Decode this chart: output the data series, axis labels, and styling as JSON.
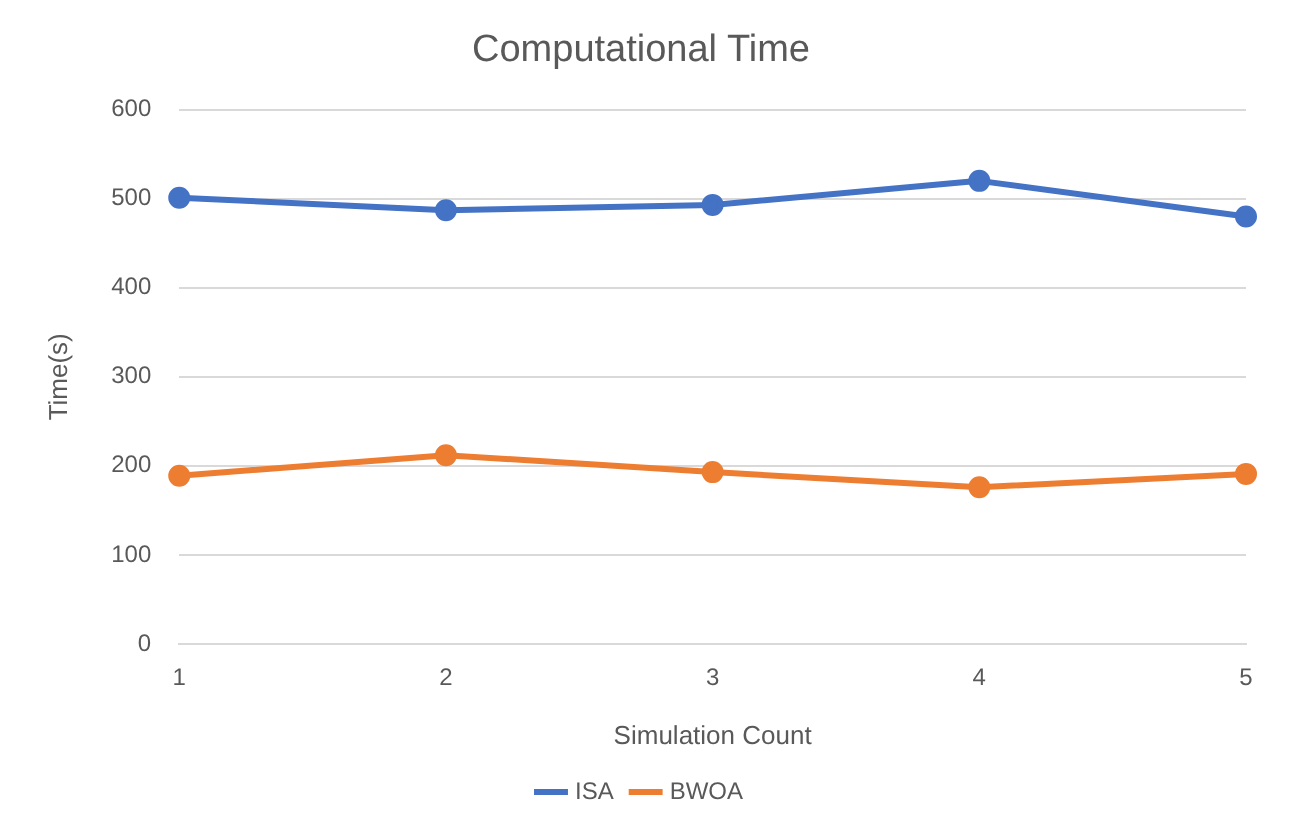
{
  "chart_data": {
    "type": "line",
    "title": "Computational Time",
    "xlabel": "Simulation Count",
    "ylabel": "Time(s)",
    "categories": [
      "1",
      "2",
      "3",
      "4",
      "5"
    ],
    "series": [
      {
        "name": "ISA",
        "color": "#4472c4",
        "values": [
          501,
          487,
          493,
          520,
          480
        ]
      },
      {
        "name": "BWOA",
        "color": "#ed7d31",
        "values": [
          189,
          212,
          193,
          176,
          191
        ]
      }
    ],
    "ylim": [
      0,
      600
    ],
    "yticks": [
      0,
      100,
      200,
      300,
      400,
      500,
      600
    ],
    "grid": "y",
    "legend": "bottom",
    "marker": "circle",
    "line_style": "solid"
  }
}
